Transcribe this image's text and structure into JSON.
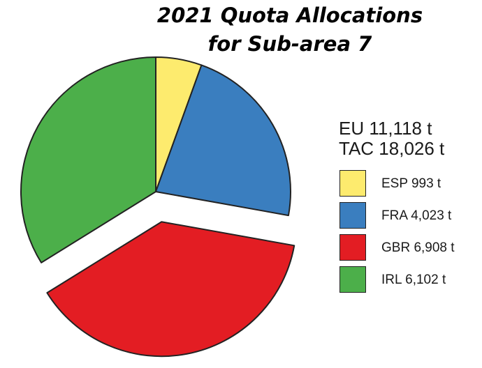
{
  "title_line1": "2021 Quota Allocations",
  "title_line2": "for Sub-area 7",
  "summary": {
    "eu": "EU 11,118 t",
    "tac": "TAC 18,026 t"
  },
  "chart_data": {
    "type": "pie",
    "title": "2021 Quota Allocations for Sub-area 7",
    "slices": [
      {
        "label": "ESP 993 t",
        "name": "ESP",
        "value": 993,
        "color": "#fdeb6e",
        "exploded": false
      },
      {
        "label": "FRA 4,023 t",
        "name": "FRA",
        "value": 4023,
        "color": "#3a7ebf",
        "exploded": false
      },
      {
        "label": "GBR 6,908 t",
        "name": "GBR",
        "value": 6908,
        "color": "#e31d23",
        "exploded": true
      },
      {
        "label": "IRL 6,102 t",
        "name": "IRL",
        "value": 6102,
        "color": "#4caf4a",
        "exploded": false
      }
    ],
    "start_angle": "12 o'clock",
    "direction": "clockwise",
    "legend_position": "right"
  }
}
